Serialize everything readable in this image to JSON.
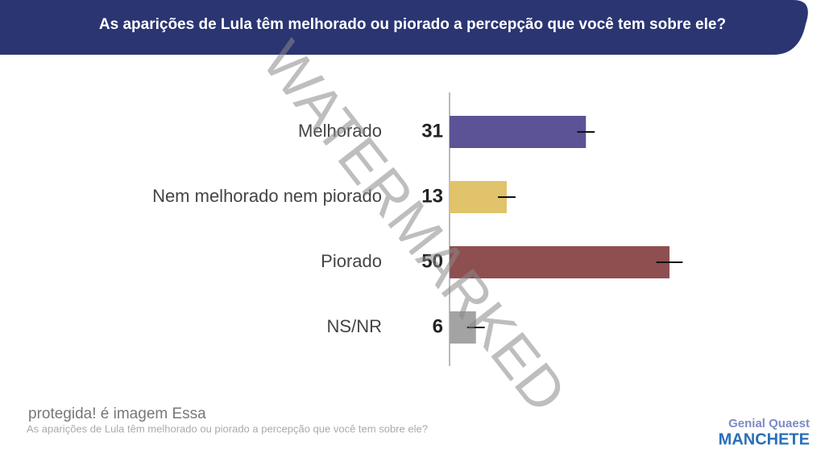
{
  "chart_data": {
    "type": "bar",
    "orientation": "horizontal",
    "title": "As aparições de Lula têm melhorado ou piorado a percepção que você tem sobre ele?",
    "categories": [
      "Melhorado",
      "Nem melhorado nem piorado",
      "Piorado",
      "NS/NR"
    ],
    "values": [
      31,
      13,
      50,
      6
    ],
    "errors": [
      2,
      2,
      3,
      2
    ],
    "colors": [
      "#5b5396",
      "#e0c36a",
      "#8e4f50",
      "#a3a3a3"
    ],
    "xlim": [
      0,
      50
    ]
  },
  "footer": {
    "caption": "protegida! é imagem Essa",
    "subtitle": "As aparições de Lula têm melhorado ou piorado a percepção que você tem sobre ele?"
  },
  "logo": {
    "top": "Genial Quaest",
    "bottom": "MANCHETE"
  },
  "watermark": "WATERMARKED"
}
